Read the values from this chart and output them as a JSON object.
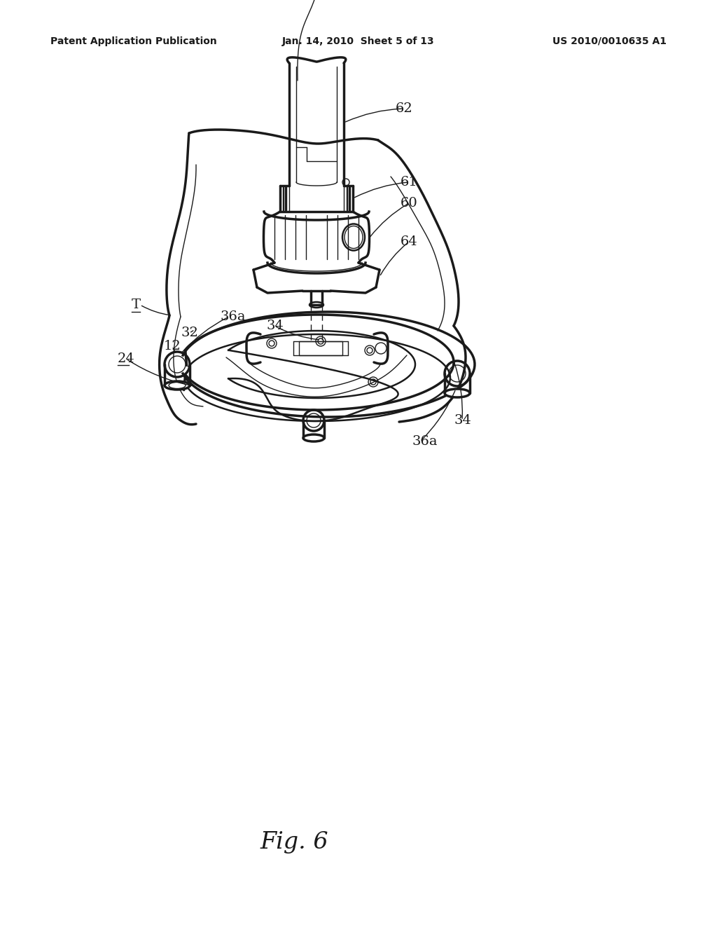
{
  "background_color": "#ffffff",
  "header_left": "Patent Application Publication",
  "header_middle": "Jan. 14, 2010  Sheet 5 of 13",
  "header_right": "US 2010/0010635 A1",
  "figure_label": "Fig. 6",
  "line_color": "#1a1a1a",
  "text_color": "#1a1a1a",
  "lw_main": 1.8,
  "lw_thin": 1.0,
  "lw_thick": 2.5
}
